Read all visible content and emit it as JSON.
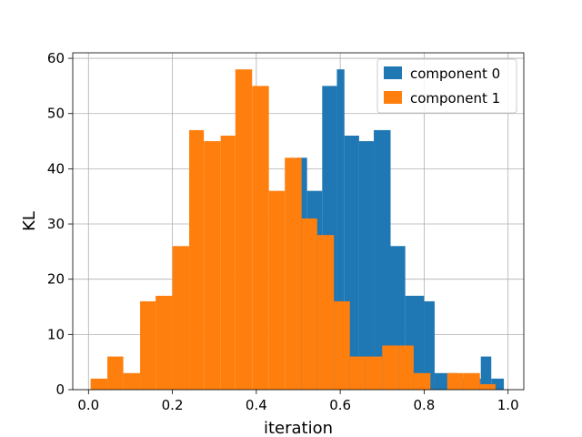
{
  "chart_data": {
    "type": "bar",
    "title": "",
    "xlabel": "iteration",
    "ylabel": "KL",
    "xlim": [
      -0.0375,
      1.0375
    ],
    "ylim": [
      0,
      61
    ],
    "xticks": [
      0.0,
      0.2,
      0.4,
      0.6,
      0.8,
      1.0
    ],
    "xtick_labels": [
      "0.0",
      "0.2",
      "0.4",
      "0.6",
      "0.8",
      "1.0"
    ],
    "yticks": [
      0,
      10,
      20,
      30,
      40,
      50,
      60
    ],
    "ytick_labels": [
      "0",
      "10",
      "20",
      "30",
      "40",
      "50",
      "60"
    ],
    "grid": true,
    "legend_position": "top-right",
    "series": [
      {
        "name": "component 0",
        "color": "#1f77b4",
        "bins": [
          [
            0.497,
            0.521,
            42
          ],
          [
            0.521,
            0.557,
            36
          ],
          [
            0.557,
            0.592,
            55
          ],
          [
            0.592,
            0.61,
            58
          ],
          [
            0.61,
            0.645,
            46
          ],
          [
            0.645,
            0.68,
            45
          ],
          [
            0.68,
            0.72,
            47
          ],
          [
            0.72,
            0.755,
            26
          ],
          [
            0.755,
            0.8,
            17
          ],
          [
            0.8,
            0.825,
            16
          ],
          [
            0.825,
            0.88,
            3
          ],
          [
            0.88,
            0.935,
            2
          ],
          [
            0.935,
            0.96,
            6
          ],
          [
            0.96,
            0.99,
            2
          ]
        ]
      },
      {
        "name": "component 1",
        "color": "#ff7f0e",
        "bins": [
          [
            0.005,
            0.045,
            2
          ],
          [
            0.045,
            0.083,
            6
          ],
          [
            0.083,
            0.123,
            3
          ],
          [
            0.123,
            0.16,
            16
          ],
          [
            0.16,
            0.2,
            17
          ],
          [
            0.2,
            0.24,
            26
          ],
          [
            0.24,
            0.275,
            47
          ],
          [
            0.275,
            0.315,
            45
          ],
          [
            0.315,
            0.35,
            46
          ],
          [
            0.35,
            0.39,
            58
          ],
          [
            0.39,
            0.43,
            55
          ],
          [
            0.43,
            0.468,
            36
          ],
          [
            0.468,
            0.508,
            42
          ],
          [
            0.508,
            0.545,
            31
          ],
          [
            0.545,
            0.585,
            28
          ],
          [
            0.585,
            0.623,
            16
          ],
          [
            0.623,
            0.66,
            6
          ],
          [
            0.66,
            0.7,
            6
          ],
          [
            0.7,
            0.74,
            8
          ],
          [
            0.74,
            0.775,
            8
          ],
          [
            0.775,
            0.815,
            3
          ],
          [
            0.815,
            0.855,
            0
          ],
          [
            0.855,
            0.893,
            3
          ],
          [
            0.893,
            0.933,
            3
          ],
          [
            0.933,
            0.97,
            1
          ]
        ]
      }
    ]
  }
}
